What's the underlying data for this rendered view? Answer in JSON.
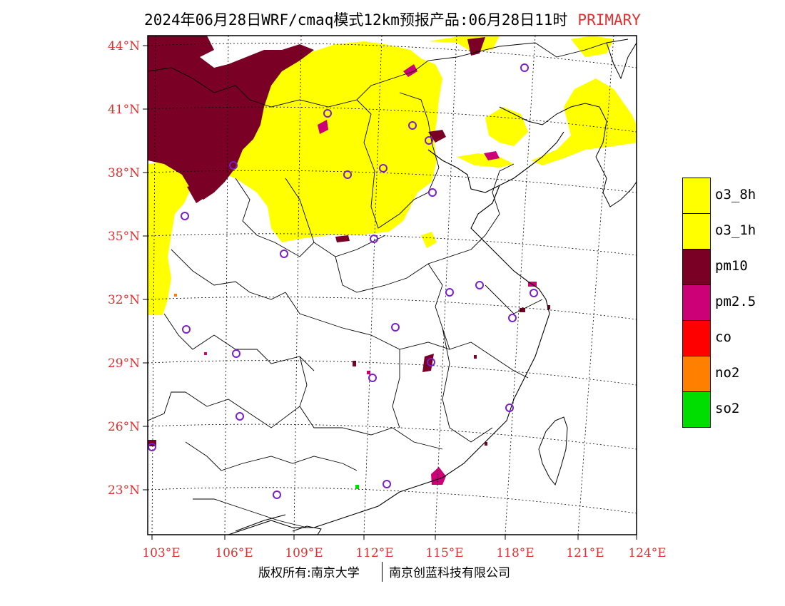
{
  "header": {
    "title": "2024年06月28日WRF/cmaq模式12km预报产品:06月28日11时",
    "tag": "PRIMARY"
  },
  "axes": {
    "lat_labels": [
      "44°N",
      "41°N",
      "38°N",
      "35°N",
      "32°N",
      "29°N",
      "26°N",
      "23°N"
    ],
    "lon_labels": [
      "103°E",
      "106°E",
      "109°E",
      "112°E",
      "115°E",
      "118°E",
      "121°E",
      "124°E"
    ]
  },
  "legend": [
    {
      "label": "o3_8h",
      "color": "#ffff00"
    },
    {
      "label": "o3_1h",
      "color": "#ffff00"
    },
    {
      "label": "pm10",
      "color": "#7a0026"
    },
    {
      "label": "pm2.5",
      "color": "#cc0077"
    },
    {
      "label": "co",
      "color": "#ff0000"
    },
    {
      "label": "no2",
      "color": "#ff8000"
    },
    {
      "label": "so2",
      "color": "#00dd00"
    }
  ],
  "footer": {
    "left": "版权所有:南京大学",
    "right": "南京创蓝科技有限公司"
  }
}
